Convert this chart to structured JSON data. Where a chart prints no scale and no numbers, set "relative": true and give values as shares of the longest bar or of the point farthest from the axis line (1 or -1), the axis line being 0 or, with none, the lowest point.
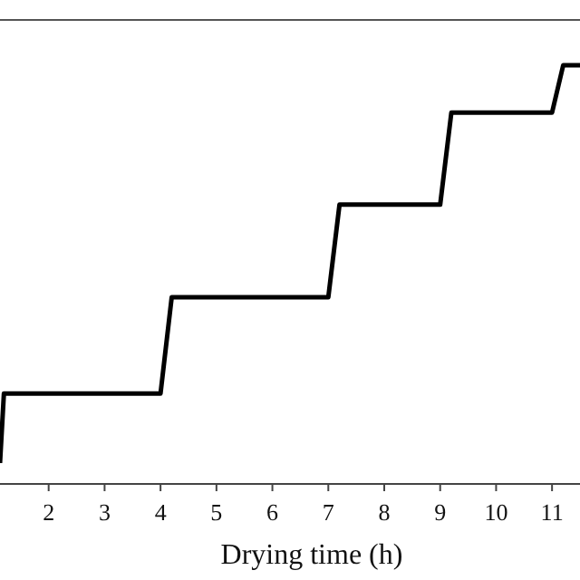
{
  "chart_data": {
    "type": "line",
    "xlabel": "Drying time (h)",
    "relative": true,
    "xlim": [
      1.13,
      11.5
    ],
    "xticks": [
      2,
      3,
      4,
      5,
      6,
      7,
      8,
      9,
      10,
      11
    ],
    "tick_labels": "x",
    "marker": "none",
    "line_style": "solid",
    "series": [
      {
        "color": "#000000",
        "x": [
          1.13,
          1.2,
          4,
          4.2,
          7,
          7.2,
          9,
          9.2,
          11,
          11.2,
          11.5
        ],
        "values": [
          0.05,
          0.216,
          0.216,
          0.446,
          0.446,
          0.667,
          0.667,
          0.887,
          0.887,
          1,
          1
        ]
      }
    ]
  }
}
